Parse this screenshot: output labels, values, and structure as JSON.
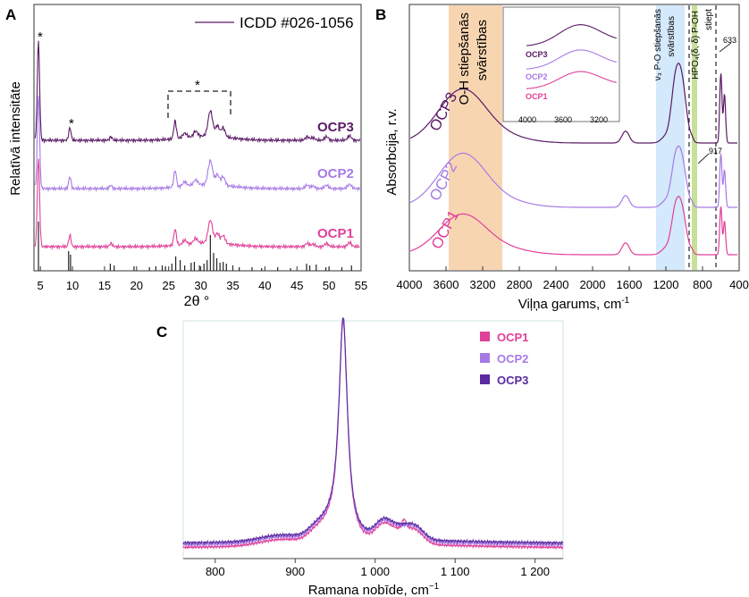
{
  "colors": {
    "OCP1": "#e0409a",
    "OCP2": "#a77ae6",
    "OCP3": "#5a1a66",
    "ref": "#222222",
    "oh_band": "#f6c797",
    "po_band": "#cfe7fb",
    "hpo_band": "#c7e09a"
  },
  "panels": {
    "A": {
      "letter": "A",
      "legend": "ICDD #026-1056",
      "xlabel": "2θ °",
      "ylabel": "Relatīvā intensitāte",
      "xticks": [
        "5",
        "10",
        "15",
        "20",
        "25",
        "30",
        "35",
        "40",
        "45",
        "50",
        "55"
      ],
      "series_labels": [
        "OCP3",
        "OCP2",
        "OCP1"
      ],
      "stars": [
        "*",
        "*",
        "*"
      ]
    },
    "B": {
      "letter": "B",
      "xlabel": "Viļņa garums, cm",
      "xlabel_sup": "-1",
      "ylabel": "Absorbcija, r.v.",
      "xticks": [
        "4000",
        "3600",
        "3200",
        "2800",
        "2400",
        "2000",
        "1600",
        "1200",
        "800",
        "400"
      ],
      "band_oh_line1": "O-H stiepšanās",
      "band_oh_line2": "svārstības",
      "band_po_line1": "ν₃ P-O stiepšanās",
      "band_po_line2": "svārstības",
      "band_hpo": "HPO₄(δ, δ) P-OH",
      "band_stiept": "stiept",
      "peak_917": "917",
      "peak_633": "633",
      "series_labels": [
        "OCP3",
        "OCP2",
        "OCP1"
      ],
      "inset_labels": [
        "OCP3",
        "OCP2",
        "OCP1"
      ],
      "inset_xticks": [
        "4000",
        "3600",
        "3200"
      ]
    },
    "C": {
      "letter": "C",
      "xlabel": "Ramana nobīde, cm",
      "xlabel_sup": "−1",
      "xticks": [
        "800",
        "900",
        "1 000",
        "1 100",
        "1 200"
      ],
      "legend": [
        "OCP1",
        "OCP2",
        "OCP3"
      ]
    }
  },
  "chart_data": [
    {
      "type": "line",
      "panel": "A",
      "xlabel": "2θ °",
      "ylabel": "Relatīvā intensitāte",
      "xlim": [
        4,
        55
      ],
      "series": [
        {
          "name": "OCP3",
          "peaks_2theta": [
            4.7,
            9.5,
            16.0,
            26.0,
            31.5,
            33.5,
            46.5,
            49.5,
            53.0
          ]
        },
        {
          "name": "OCP2",
          "peaks_2theta": [
            4.7,
            9.5,
            16.0,
            26.0,
            31.5,
            33.5,
            46.5,
            49.5,
            53.0
          ]
        },
        {
          "name": "OCP1",
          "peaks_2theta": [
            4.7,
            9.5,
            16.0,
            26.0,
            31.5,
            33.5,
            46.5,
            49.5,
            53.0
          ]
        },
        {
          "name": "ICDD #026-1056",
          "sticks_2theta": [
            4.7,
            9.4,
            9.7,
            15.9,
            16.5,
            19.6,
            22.0,
            23.0,
            24.0,
            24.5,
            25.5,
            26.1,
            26.8,
            27.5,
            28.5,
            29.0,
            29.8,
            30.5,
            31.0,
            31.5,
            32.0,
            32.5,
            33.0,
            33.5,
            34.0,
            35.0,
            36.0,
            38.0,
            39.5,
            42.0,
            44.0,
            46.5,
            47.0,
            48.0,
            49.5,
            50.0,
            52.0,
            53.5
          ]
        }
      ]
    },
    {
      "type": "line",
      "panel": "B",
      "xlabel": "Viļņa garums, cm-1",
      "ylabel": "Absorbcija, r.v.",
      "xlim": [
        4000,
        400
      ],
      "annotations": {
        "917": 917,
        "633": 633
      },
      "series": [
        {
          "name": "OCP3"
        },
        {
          "name": "OCP2"
        },
        {
          "name": "OCP1"
        }
      ]
    },
    {
      "type": "line",
      "panel": "C",
      "xlabel": "Ramana nobīde, cm−1",
      "xlim": [
        760,
        1235
      ],
      "series": [
        {
          "name": "OCP1",
          "main_peak": 960
        },
        {
          "name": "OCP2",
          "main_peak": 960
        },
        {
          "name": "OCP3",
          "main_peak": 960
        }
      ]
    }
  ]
}
